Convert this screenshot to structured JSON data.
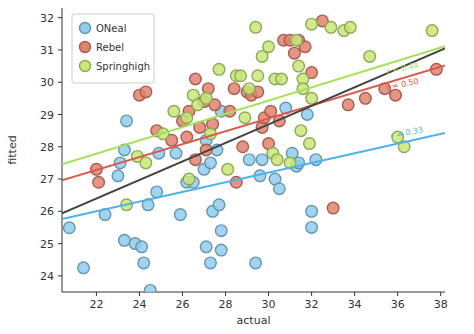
{
  "chart_data": {
    "type": "scatter",
    "x_label": "actual",
    "y_label": "fitted",
    "xlim": [
      20.4,
      38.2
    ],
    "ylim": [
      23.5,
      32.3
    ],
    "xticks": [
      22,
      24,
      26,
      28,
      30,
      32,
      34,
      36,
      38
    ],
    "yticks": [
      24,
      25,
      26,
      27,
      28,
      29,
      30,
      31,
      32
    ],
    "grid": false,
    "legend": "top-left",
    "series": [
      {
        "name": "ONeal",
        "color": "#8fcdef",
        "marker": "circle",
        "x": [
          20.74,
          21.4,
          22.4,
          23.1,
          23.0,
          23.3,
          23.3,
          23.8,
          23.4,
          24.1,
          24.2,
          24.4,
          24.5,
          24.8,
          24.9,
          25.7,
          25.9,
          26.2,
          26.5,
          27.0,
          27.1,
          27.3,
          27.6,
          27.4,
          27.1,
          27.3,
          27.8,
          27.8,
          27.7,
          27.8,
          29.1,
          29.6,
          29.7,
          29.4,
          30.3,
          30.5,
          30.8,
          31.1,
          31.3,
          31.4,
          32.0,
          32.2,
          32.0,
          31.8
        ],
        "values": [
          25.49,
          24.25,
          25.9,
          27.5,
          27.1,
          27.9,
          25.1,
          25.0,
          28.8,
          24.9,
          24.4,
          26.2,
          23.55,
          26.6,
          27.8,
          27.8,
          25.9,
          26.9,
          26.9,
          27.3,
          28.2,
          27.5,
          27.9,
          26.0,
          24.9,
          24.4,
          25.4,
          24.8,
          26.2,
          29.1,
          27.6,
          27.1,
          27.6,
          24.4,
          27.0,
          26.7,
          29.2,
          27.8,
          27.4,
          27.5,
          26.0,
          27.6,
          25.5,
          29.0
        ]
      },
      {
        "name": "Rebel",
        "color": "#e2826f",
        "marker": "circle",
        "x": [
          22.0,
          22.1,
          24.0,
          24.3,
          24.8,
          25.5,
          26.0,
          26.2,
          26.3,
          26.6,
          26.6,
          26.8,
          27.0,
          27.2,
          27.4,
          27.5,
          28.2,
          28.5,
          28.8,
          29.0,
          29.2,
          29.5,
          29.7,
          29.8,
          30.0,
          30.1,
          30.5,
          30.7,
          31.0,
          31.2,
          31.4,
          31.7,
          32.0,
          32.5,
          33.0,
          33.7,
          34.5,
          35.4,
          35.9,
          37.8,
          27.1,
          28.4
        ],
        "values": [
          27.3,
          26.9,
          29.6,
          29.7,
          28.5,
          28.2,
          28.8,
          28.3,
          29.1,
          30.1,
          27.6,
          28.6,
          29.4,
          29.8,
          28.7,
          29.3,
          29.1,
          26.9,
          28.0,
          29.7,
          29.6,
          29.7,
          28.6,
          28.9,
          28.1,
          29.1,
          28.8,
          31.3,
          31.3,
          30.9,
          31.3,
          31.1,
          30.3,
          31.9,
          26.1,
          29.3,
          29.5,
          29.8,
          29.6,
          30.4,
          27.9,
          29.8
        ]
      },
      {
        "name": "Springhigh",
        "color": "#c7e878",
        "marker": "circle",
        "x": [
          23.4,
          23.9,
          24.3,
          25.1,
          25.6,
          26.2,
          26.5,
          26.7,
          26.3,
          27.1,
          27.3,
          27.7,
          28.1,
          28.5,
          28.7,
          28.9,
          29.1,
          29.5,
          29.4,
          29.7,
          30.0,
          30.3,
          30.6,
          30.2,
          30.4,
          31.0,
          31.3,
          31.4,
          31.6,
          31.6,
          31.5,
          32.0,
          31.9,
          32.9,
          33.5,
          33.8,
          34.7,
          36.0,
          36.3,
          37.6,
          32.0
        ],
        "values": [
          26.2,
          27.7,
          27.5,
          28.4,
          29.1,
          28.9,
          29.6,
          29.3,
          27.0,
          29.5,
          28.4,
          30.4,
          27.3,
          30.2,
          30.2,
          28.9,
          29.8,
          30.2,
          31.7,
          30.8,
          31.1,
          30.1,
          30.1,
          27.8,
          27.6,
          27.5,
          31.3,
          30.5,
          30.1,
          29.8,
          28.5,
          29.5,
          28.1,
          31.7,
          31.6,
          31.7,
          30.8,
          28.3,
          28.0,
          31.6,
          31.8
        ]
      },
      {
        "type": "line",
        "color": "#4cb2ea",
        "x": [
          20.4,
          38.2
        ],
        "values": [
          25.76,
          28.43
        ]
      },
      {
        "type": "line",
        "color": "#d85c4c",
        "x": [
          20.4,
          38.2
        ],
        "values": [
          26.96,
          30.52
        ]
      },
      {
        "type": "line",
        "color": "#a6e05a",
        "x": [
          20.4,
          38.2
        ],
        "values": [
          27.46,
          31.12
        ]
      },
      {
        "type": "line",
        "color": "#444444",
        "x": [
          20.4,
          38.2
        ],
        "values": [
          25.94,
          31.05
        ]
      }
    ],
    "annotations": [
      {
        "text": "r = 0.33",
        "x": 35.7,
        "y": 28.25,
        "color": "#4cb2ea"
      },
      {
        "text": "r = 0.50",
        "x": 35.5,
        "y": 29.75,
        "color": "#d85c4c"
      },
      {
        "text": "r = 0.44",
        "x": 35.5,
        "y": 30.25,
        "color": "#a6e05a"
      }
    ]
  }
}
